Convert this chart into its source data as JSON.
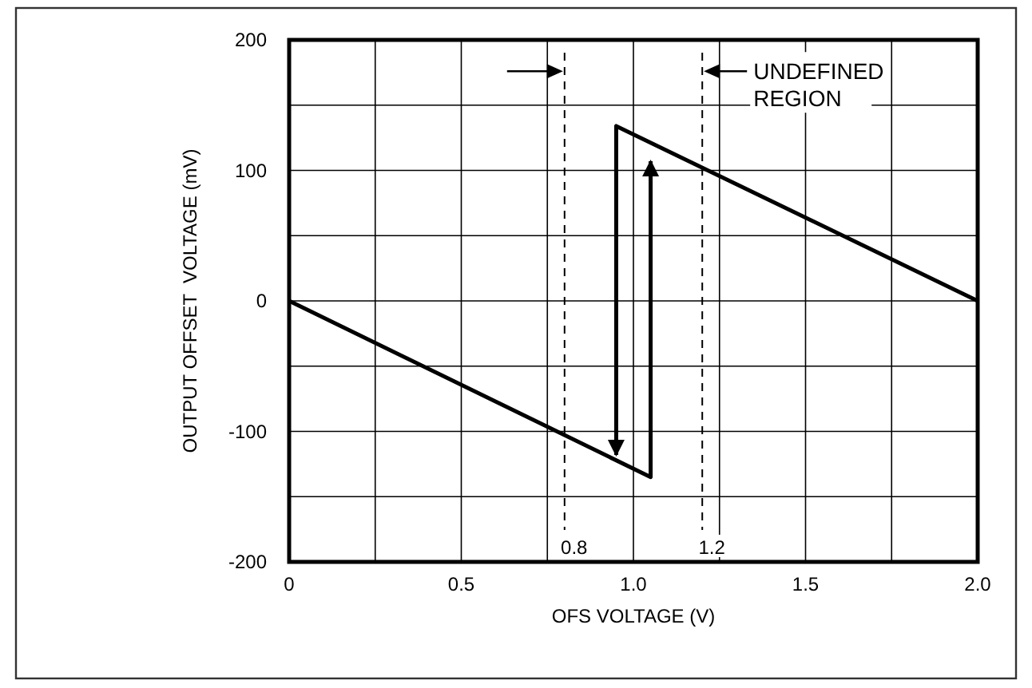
{
  "chart_data": {
    "type": "line",
    "xlabel": "OFS VOLTAGE (V)",
    "ylabel": "OUTPUT OFFSET  VOLTAGE (mV)",
    "xlim": [
      0,
      2.0
    ],
    "ylim": [
      -200,
      200
    ],
    "xticks": [
      0,
      {
        "value": 0.25,
        "label": null
      },
      0.5,
      {
        "value": 0.75,
        "label": null
      },
      {
        "value": 1.0,
        "label": "1.0"
      },
      {
        "value": 1.25,
        "label": null
      },
      1.5,
      {
        "value": 1.75,
        "label": null
      },
      {
        "value": 2.0,
        "label": "2.0"
      }
    ],
    "yticks": [
      -200,
      {
        "value": -150,
        "label": null
      },
      -100,
      {
        "value": -50,
        "label": null
      },
      0,
      {
        "value": 50,
        "label": null
      },
      100,
      {
        "value": 150,
        "label": null
      },
      200
    ],
    "grid": true,
    "marker": "none",
    "line_style": "solid",
    "series": [
      {
        "color": "#000000",
        "x": [
          0,
          1.05,
          1.05
        ],
        "values": [
          0,
          -135,
          107
        ]
      },
      {
        "color": "#000000",
        "x": [
          2.0,
          0.95,
          0.95
        ],
        "values": [
          0,
          134,
          -118
        ]
      }
    ],
    "ref_lines": [
      {
        "axis": "x",
        "value": 0.8,
        "label": "0.8",
        "line_style": "dashed"
      },
      {
        "axis": "x",
        "value": 1.2,
        "label": "1.2",
        "line_style": "dashed"
      }
    ],
    "annotations": [
      "UNDEFINED REGION"
    ]
  }
}
